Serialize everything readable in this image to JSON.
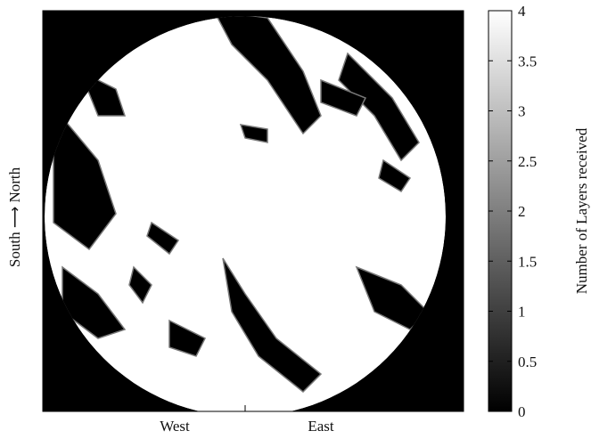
{
  "chart_data": {
    "type": "heatmap",
    "categories": [
      "West",
      "East"
    ],
    "ylabel": "South ⟶ North",
    "colorbar": {
      "label": "Number of Layers received",
      "lim": [
        0,
        4
      ],
      "ticks": [
        0,
        0.5,
        1,
        1.5,
        2,
        2.5,
        3,
        3.5,
        4
      ],
      "colors": [
        "#000000",
        "#ffffff"
      ]
    }
  }
}
